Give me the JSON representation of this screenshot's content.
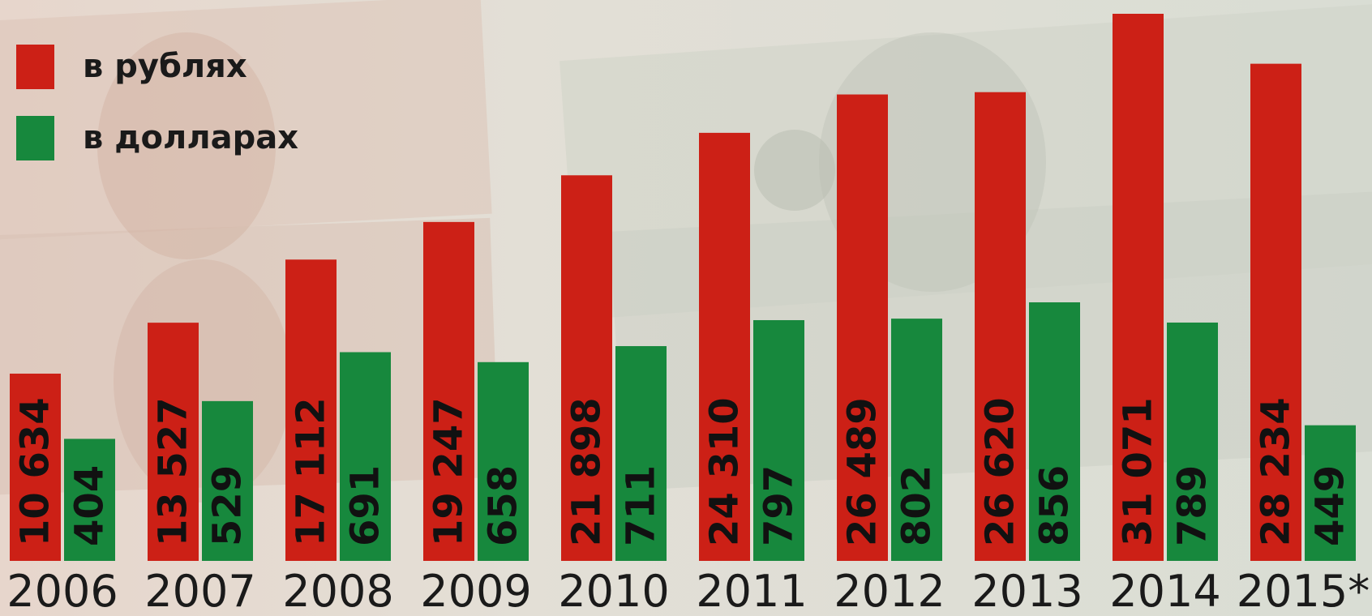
{
  "colors": {
    "rubles": "#cc2016",
    "dollars": "#17883d"
  },
  "chart_data": {
    "type": "bar",
    "categories": [
      "2006",
      "2007",
      "2008",
      "2009",
      "2010",
      "2011",
      "2012",
      "2013",
      "2014",
      "2015*"
    ],
    "series": [
      {
        "name": "в рублях",
        "values": [
          10634,
          13527,
          17112,
          19247,
          21898,
          24310,
          26489,
          26620,
          31071,
          28234
        ],
        "labels": [
          "10 634",
          "13 527",
          "17 112",
          "19 247",
          "21 898",
          "24 310",
          "26 489",
          "26 620",
          "31 071",
          "28 234"
        ]
      },
      {
        "name": "в долларах",
        "values": [
          404,
          529,
          691,
          658,
          711,
          797,
          802,
          856,
          789,
          449
        ],
        "labels": [
          "404",
          "529",
          "691",
          "658",
          "711",
          "797",
          "802",
          "856",
          "789",
          "449"
        ]
      }
    ],
    "legend": "top-left",
    "grid": false,
    "title": ""
  }
}
